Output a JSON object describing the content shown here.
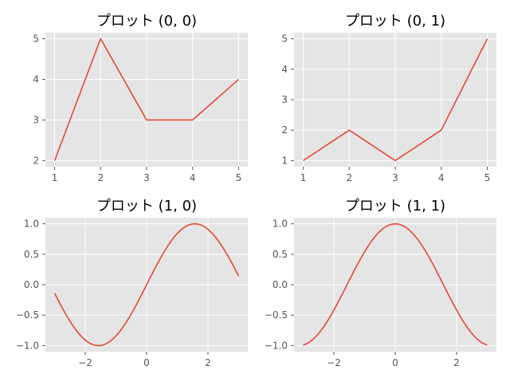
{
  "chart_data": [
    {
      "type": "line",
      "title": "プロット (0, 0)",
      "x": [
        1,
        2,
        3,
        4,
        5
      ],
      "series": [
        {
          "values": [
            2,
            5,
            3,
            3,
            4
          ]
        }
      ],
      "xlim": [
        0.8,
        5.2
      ],
      "ylim": [
        1.85,
        5.15
      ],
      "xticks": [
        1,
        2,
        3,
        4,
        5
      ],
      "yticks": [
        2,
        3,
        4,
        5
      ],
      "xtick_labels": [
        "1",
        "2",
        "3",
        "4",
        "5"
      ],
      "ytick_labels": [
        "2",
        "3",
        "4",
        "5"
      ],
      "grid": true
    },
    {
      "type": "line",
      "title": "プロット (0, 1)",
      "x": [
        1,
        2,
        3,
        4,
        5
      ],
      "series": [
        {
          "values": [
            1,
            2,
            1,
            2,
            5
          ]
        }
      ],
      "xlim": [
        0.8,
        5.2
      ],
      "ylim": [
        0.8,
        5.2
      ],
      "xticks": [
        1,
        2,
        3,
        4,
        5
      ],
      "yticks": [
        1,
        2,
        3,
        4,
        5
      ],
      "xtick_labels": [
        "1",
        "2",
        "3",
        "4",
        "5"
      ],
      "ytick_labels": [
        "1",
        "2",
        "3",
        "4",
        "5"
      ],
      "grid": true
    },
    {
      "type": "line",
      "title": "プロット (1, 0)",
      "x": [
        -3.0,
        -2.5,
        -2.0,
        -1.5708,
        -1.0,
        -0.5,
        0.0,
        0.5,
        1.0,
        1.5708,
        2.0,
        2.5,
        3.0
      ],
      "series": [
        {
          "values": [
            -0.141,
            -0.598,
            -0.909,
            -1.0,
            -0.841,
            -0.479,
            0.0,
            0.479,
            0.841,
            1.0,
            0.909,
            0.598,
            0.141
          ]
        }
      ],
      "xlim": [
        -3.3,
        3.3
      ],
      "ylim": [
        -1.1,
        1.1
      ],
      "xticks": [
        -2,
        0,
        2
      ],
      "yticks": [
        -1.0,
        -0.5,
        0.0,
        0.5,
        1.0
      ],
      "xtick_labels": [
        "−2",
        "0",
        "2"
      ],
      "ytick_labels": [
        "−1.0",
        "−0.5",
        "0.0",
        "0.5",
        "1.0"
      ],
      "grid": true
    },
    {
      "type": "line",
      "title": "プロット (1, 1)",
      "x": [
        -3.0,
        -2.5,
        -2.0,
        -1.5,
        -1.0,
        -0.5,
        0.0,
        0.5,
        1.0,
        1.5,
        2.0,
        2.5,
        3.0
      ],
      "series": [
        {
          "values": [
            -0.99,
            -0.801,
            -0.416,
            0.071,
            0.54,
            0.878,
            1.0,
            0.878,
            0.54,
            0.071,
            -0.416,
            -0.801,
            -0.99
          ]
        }
      ],
      "xlim": [
        -3.3,
        3.3
      ],
      "ylim": [
        -1.1,
        1.1
      ],
      "xticks": [
        -2,
        0,
        2
      ],
      "yticks": [
        -1.0,
        -0.5,
        0.0,
        0.5,
        1.0
      ],
      "xtick_labels": [
        "−2",
        "0",
        "2"
      ],
      "ytick_labels": [
        "−1.0",
        "−0.5",
        "0.0",
        "0.5",
        "1.0"
      ],
      "grid": true
    }
  ],
  "colors": {
    "line": "#e24a33",
    "plot_background": "#e5e5e5",
    "grid": "#ffffff",
    "tick_label": "#555555",
    "title": "#000000"
  }
}
